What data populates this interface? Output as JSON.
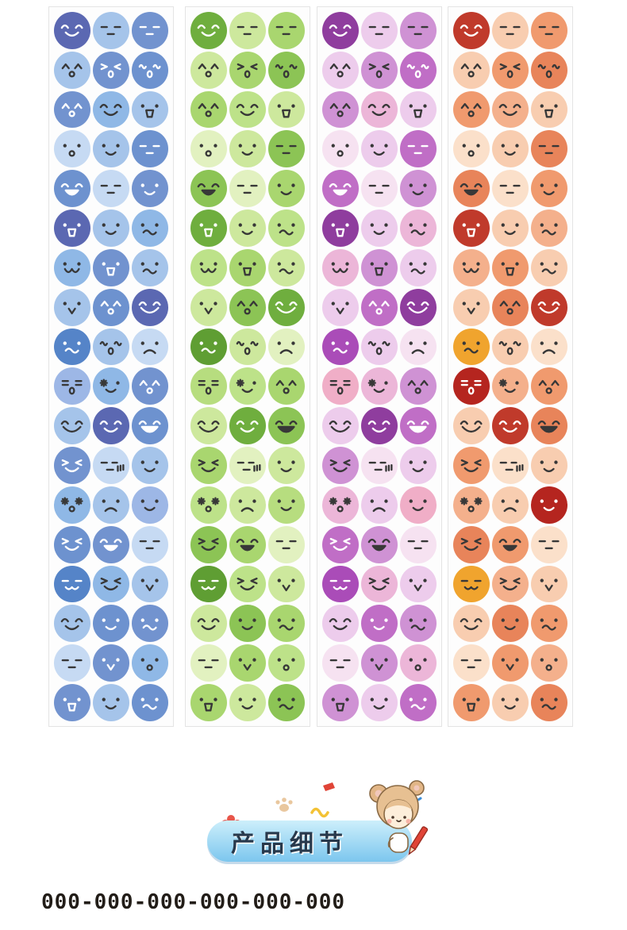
{
  "page": {
    "background": "#ffffff"
  },
  "sticker_sheets": {
    "rows": 18,
    "cols": 3,
    "strips": [
      {
        "name": "blue",
        "palette": [
          "#5b68b2",
          "#7293cf",
          "#a5c4ea",
          "#6d92cf",
          "#8fb8e6",
          "#c6daf3",
          "#5584c8",
          "#9db7e6"
        ]
      },
      {
        "name": "green",
        "palette": [
          "#6fae3e",
          "#a9d66f",
          "#cde89d",
          "#8cc455",
          "#bde289",
          "#e2f1c0",
          "#5f9e33",
          "#b7dd7f"
        ]
      },
      {
        "name": "purple-pink",
        "palette": [
          "#8f3d9e",
          "#cf92d4",
          "#edccec",
          "#c06ec6",
          "#ecb6d8",
          "#f6e2f1",
          "#aa4cb8",
          "#f0aec7"
        ]
      },
      {
        "name": "orange-red",
        "palette": [
          "#c03a2b",
          "#f09a6e",
          "#f8cdb0",
          "#e8845a",
          "#f4b08c",
          "#fbe0ca",
          "#f0a42e",
          "#b5251f"
        ]
      }
    ],
    "color_index": [
      [
        0,
        2,
        1
      ],
      [
        2,
        1,
        3
      ],
      [
        1,
        4,
        2
      ],
      [
        5,
        2,
        3
      ],
      [
        3,
        5,
        1
      ],
      [
        0,
        2,
        4
      ],
      [
        4,
        1,
        2
      ],
      [
        2,
        3,
        0
      ],
      [
        6,
        2,
        5
      ],
      [
        7,
        4,
        1
      ],
      [
        2,
        0,
        3
      ],
      [
        1,
        5,
        2
      ],
      [
        4,
        2,
        7
      ],
      [
        3,
        1,
        5
      ],
      [
        6,
        4,
        2
      ],
      [
        2,
        3,
        1
      ],
      [
        5,
        1,
        4
      ],
      [
        1,
        2,
        3
      ]
    ],
    "faces": [
      [
        "smile",
        "flat",
        "flat"
      ],
      [
        "caret_o",
        "wink_zero",
        "squiggle_zero"
      ],
      [
        "caret_o",
        "smile",
        "triangle"
      ],
      [
        "dot_o",
        "dot_smile",
        "flat"
      ],
      [
        "open_smile",
        "flat",
        "dot_smile"
      ],
      [
        "triangle",
        "dot_smile",
        "smirk"
      ],
      [
        "mustache",
        "triangle",
        "smirk"
      ],
      [
        "bird",
        "caret_o",
        "big_smile"
      ],
      [
        "smirk",
        "squiggle_zero",
        "sad"
      ],
      [
        "equal_zero",
        "sparkle_smile",
        "caret_o"
      ],
      [
        "big_smile",
        "smile",
        "grin"
      ],
      [
        "happy_closed",
        "lines",
        "dot_smile"
      ],
      [
        "sparkle_o",
        "sad",
        "dot_smile"
      ],
      [
        "happy_closed",
        "open_smile",
        "flat"
      ],
      [
        "cat",
        "happy_closed",
        "bird"
      ],
      [
        "smile",
        "dot_smile",
        "smirk"
      ],
      [
        "flat",
        "bird",
        "dot_o"
      ],
      [
        "triangle",
        "dot_smile",
        "smirk"
      ]
    ]
  },
  "banner": {
    "label": "产品细节",
    "pill_gradient": [
      "#cdeffb",
      "#7cc6ee"
    ],
    "decorations": [
      "flower",
      "paw",
      "yellow-squiggle",
      "pencil-doodle",
      "blue-squiggle",
      "cartoon-girl"
    ]
  },
  "footer": {
    "code": "000-000-000-000-000-000",
    "color": "#221d18"
  }
}
